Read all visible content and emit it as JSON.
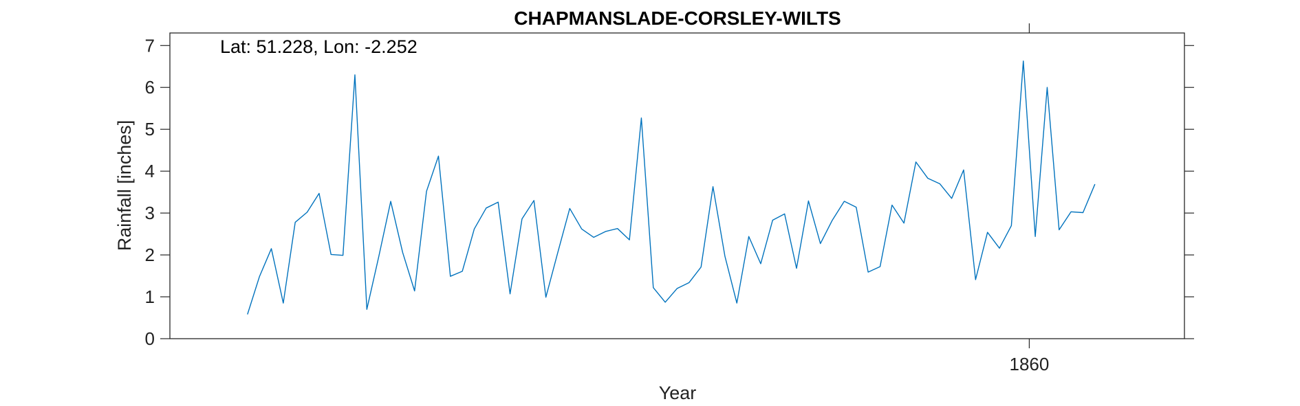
{
  "chart_data": {
    "type": "line",
    "title": "CHAPMANSLADE-CORSLEY-WILTS",
    "xlabel": "Year",
    "ylabel": "Rainfall [inches]",
    "annotation": "Lat: 51.228, Lon: -2.252",
    "xlim": [
      1788,
      1873
    ],
    "ylim": [
      0,
      7.3
    ],
    "x_ticks": [
      1860
    ],
    "x_tick_labels": [
      "1860"
    ],
    "y_ticks": [
      0,
      1,
      2,
      3,
      4,
      5,
      6,
      7
    ],
    "y_tick_labels": [
      "0",
      "1",
      "2",
      "3",
      "4",
      "5",
      "6",
      "7"
    ],
    "grid": false,
    "series": [
      {
        "color": "#0072BD",
        "x": [
          1794.5,
          1795.5,
          1796.5,
          1797.5,
          1798.5,
          1799.5,
          1800.5,
          1801.5,
          1802.5,
          1803.5,
          1804.5,
          1805.5,
          1806.5,
          1807.5,
          1808.5,
          1809.5,
          1810.5,
          1811.5,
          1812.5,
          1813.5,
          1814.5,
          1815.5,
          1816.5,
          1817.5,
          1818.5,
          1819.5,
          1820.5,
          1821.5,
          1822.5,
          1823.5,
          1824.5,
          1825.5,
          1826.5,
          1827.5,
          1828.5,
          1829.5,
          1830.5,
          1831.5,
          1832.5,
          1833.5,
          1834.5,
          1835.5,
          1836.5,
          1837.5,
          1838.5,
          1839.5,
          1840.5,
          1841.5,
          1842.5,
          1843.5,
          1844.5,
          1845.5,
          1846.5,
          1847.5,
          1848.5,
          1849.5,
          1850.5,
          1851.5,
          1852.5,
          1853.5,
          1854.5,
          1855.5,
          1856.5,
          1857.5,
          1858.5,
          1859.5,
          1860.5,
          1861.5,
          1862.5,
          1863.5,
          1864.5,
          1865.5
        ],
        "y": [
          0.58,
          1.48,
          2.15,
          0.85,
          2.78,
          3.02,
          3.47,
          2.01,
          1.99,
          6.3,
          0.7,
          1.96,
          3.28,
          2.06,
          1.14,
          3.52,
          4.36,
          1.49,
          1.61,
          2.62,
          3.12,
          3.26,
          1.07,
          2.86,
          3.3,
          0.99,
          2.06,
          3.11,
          2.62,
          2.42,
          2.56,
          2.63,
          2.36,
          5.27,
          1.22,
          0.87,
          1.2,
          1.34,
          1.71,
          3.63,
          1.97,
          0.85,
          2.44,
          1.79,
          2.83,
          2.98,
          1.68,
          3.29,
          2.27,
          2.83,
          3.28,
          3.14,
          1.59,
          1.72,
          3.19,
          2.76,
          4.22,
          3.83,
          3.7,
          3.35,
          4.03,
          1.41,
          2.54,
          2.16,
          2.7,
          6.63,
          2.44,
          6.0,
          2.6,
          3.03,
          3.01,
          3.69
        ]
      }
    ]
  }
}
